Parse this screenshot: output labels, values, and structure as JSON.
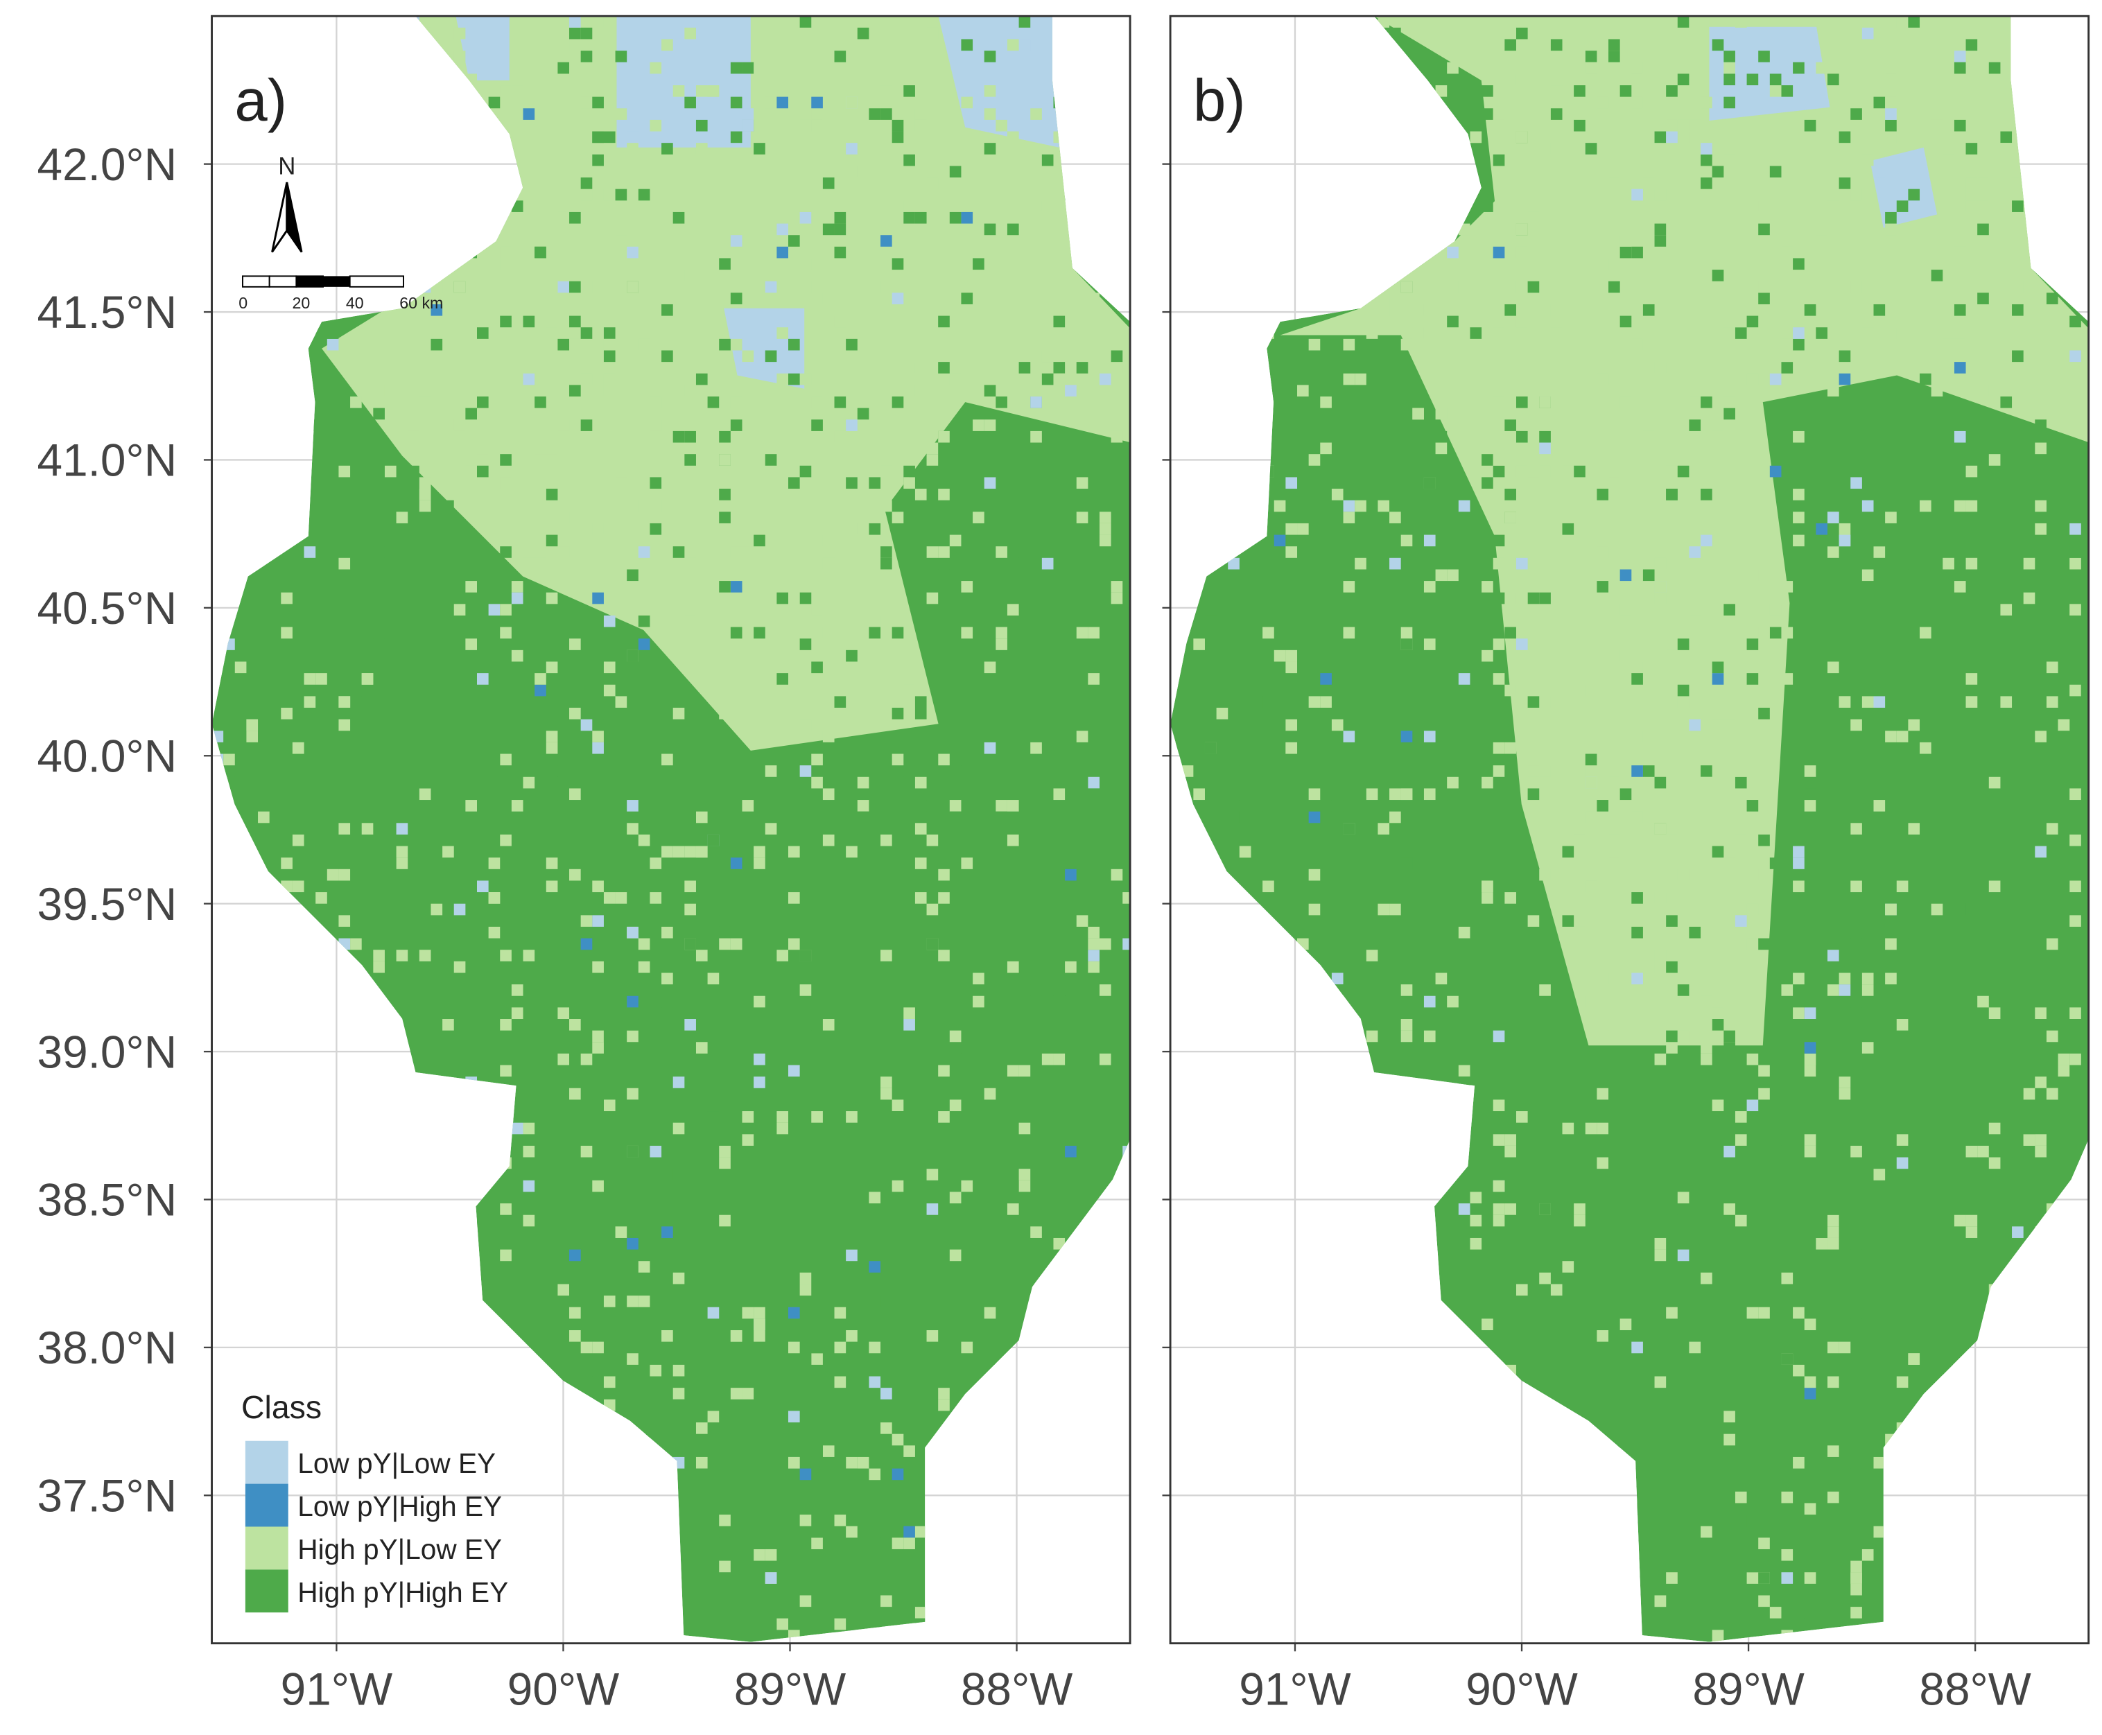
{
  "panels": [
    {
      "label": "a)"
    },
    {
      "label": "b)"
    }
  ],
  "xlim": [
    -91.55,
    -87.5
  ],
  "ylim": [
    37.0,
    42.5
  ],
  "lat_ticks": [
    {
      "value": 37.5,
      "label": "37.5°N"
    },
    {
      "value": 38.0,
      "label": "38.0°N"
    },
    {
      "value": 38.5,
      "label": "38.5°N"
    },
    {
      "value": 39.0,
      "label": "39.0°N"
    },
    {
      "value": 39.5,
      "label": "39.5°N"
    },
    {
      "value": 40.0,
      "label": "40.0°N"
    },
    {
      "value": 40.5,
      "label": "40.5°N"
    },
    {
      "value": 41.0,
      "label": "41.0°N"
    },
    {
      "value": 41.5,
      "label": "41.5°N"
    },
    {
      "value": 42.0,
      "label": "42.0°N"
    }
  ],
  "lon_ticks": [
    {
      "value": -91,
      "label": "91°W"
    },
    {
      "value": -90,
      "label": "90°W"
    },
    {
      "value": -89,
      "label": "89°W"
    },
    {
      "value": -88,
      "label": "88°W"
    }
  ],
  "north_arrow": "N",
  "scale_bar": {
    "labels": [
      "0",
      "20",
      "40",
      "60 km"
    ]
  },
  "legend": {
    "title": "Class",
    "items": [
      {
        "label": "Low pY|Low EY",
        "color": "#b3d3e8"
      },
      {
        "label": "Low pY|High EY",
        "color": "#3f8fc4"
      },
      {
        "label": "High pY|Low EY",
        "color": "#bde3a0"
      },
      {
        "label": "High pY|High EY",
        "color": "#4eaa4a"
      }
    ]
  }
}
